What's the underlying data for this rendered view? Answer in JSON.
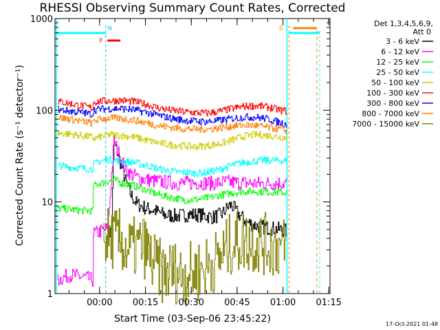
{
  "chart_data": {
    "type": "line",
    "title": "RHESSI Observing Summary Count Rates, Corrected",
    "xlabel": "Start Time (03-Sep-06 23:45:22)",
    "ylabel": "Corrected Count Rate (s⁻¹ detector⁻¹)",
    "x_unit": "minutes after start time",
    "xlim": [
      0,
      90
    ],
    "ylim": [
      1,
      1000
    ],
    "yscale": "log",
    "x_ticks": [
      {
        "x": 14.6,
        "label": "00:00"
      },
      {
        "x": 29.6,
        "label": "00:15"
      },
      {
        "x": 44.6,
        "label": "00:30"
      },
      {
        "x": 59.6,
        "label": "00:45"
      },
      {
        "x": 74.6,
        "label": "01:00"
      },
      {
        "x": 89.6,
        "label": "01:15"
      }
    ],
    "y_ticks": [
      {
        "y": 1,
        "label": "1"
      },
      {
        "y": 10,
        "label": "10"
      },
      {
        "y": 100,
        "label": "100"
      },
      {
        "y": 1000,
        "label": "1000"
      }
    ],
    "legend_header": [
      "Det 1,3,4,5,6,9,",
      "Att 0"
    ],
    "legend_position": "right",
    "grid": false,
    "series": [
      {
        "name": "3 - 6 keV",
        "color": "#000000",
        "points": [
          [
            17.3,
            4.3
          ],
          [
            18.0,
            4.6
          ],
          [
            18.7,
            5.0
          ],
          [
            19.5,
            43
          ],
          [
            20.5,
            36
          ],
          [
            22,
            24
          ],
          [
            23.5,
            16
          ],
          [
            25,
            12
          ],
          [
            27,
            9.5
          ],
          [
            30,
            8.5
          ],
          [
            33,
            8.0
          ],
          [
            36,
            7.2
          ],
          [
            40,
            7.0
          ],
          [
            44,
            7.3
          ],
          [
            48,
            7.2
          ],
          [
            52,
            6.8
          ],
          [
            55,
            7.4
          ],
          [
            57,
            9.0
          ],
          [
            58,
            9.2
          ],
          [
            60,
            7.5
          ],
          [
            63,
            6.0
          ],
          [
            66,
            5.5
          ],
          [
            70,
            5.2
          ],
          [
            74,
            5.0
          ],
          [
            76,
            4.8
          ]
        ]
      },
      {
        "name": "6 - 12 keV",
        "color": "#ff00ff",
        "points": [
          [
            1,
            1.4
          ],
          [
            5,
            1.6
          ],
          [
            10,
            1.5
          ],
          [
            12.5,
            1.4
          ],
          [
            12.6,
            4.5
          ],
          [
            14,
            4.6
          ],
          [
            16,
            4.9
          ],
          [
            17.5,
            5.1
          ],
          [
            19.5,
            47
          ],
          [
            21,
            34
          ],
          [
            23,
            24
          ],
          [
            25,
            20
          ],
          [
            28,
            18
          ],
          [
            32,
            17
          ],
          [
            36,
            16.5
          ],
          [
            40,
            16
          ],
          [
            44,
            16
          ],
          [
            48,
            16.2
          ],
          [
            52,
            16
          ],
          [
            56,
            16.5
          ],
          [
            60,
            16.2
          ],
          [
            64,
            16
          ],
          [
            68,
            15.8
          ],
          [
            72,
            16
          ],
          [
            76,
            16
          ]
        ]
      },
      {
        "name": "12 - 25 keV",
        "color": "#00ff00",
        "points": [
          [
            1,
            8.5
          ],
          [
            5,
            8.3
          ],
          [
            10,
            8.0
          ],
          [
            12.5,
            8.0
          ],
          [
            12.6,
            15
          ],
          [
            15,
            16
          ],
          [
            17,
            16.5
          ],
          [
            19.5,
            17.5
          ],
          [
            22,
            16
          ],
          [
            26,
            15
          ],
          [
            30,
            13.5
          ],
          [
            34,
            12
          ],
          [
            38,
            11.2
          ],
          [
            42,
            10.5
          ],
          [
            46,
            10.6
          ],
          [
            50,
            11
          ],
          [
            54,
            11.8
          ],
          [
            58,
            12.5
          ],
          [
            62,
            13
          ],
          [
            66,
            13
          ],
          [
            70,
            12.8
          ],
          [
            74,
            12.7
          ],
          [
            76,
            12.6
          ]
        ]
      },
      {
        "name": "25 - 50 keV",
        "color": "#00ffff",
        "points": [
          [
            1,
            25
          ],
          [
            5,
            24
          ],
          [
            10,
            23
          ],
          [
            12.5,
            23
          ],
          [
            12.6,
            25.5
          ],
          [
            15,
            28
          ],
          [
            18,
            29
          ],
          [
            20,
            28.5
          ],
          [
            22,
            27.5
          ],
          [
            26,
            27
          ],
          [
            30,
            25
          ],
          [
            34,
            23
          ],
          [
            38,
            21.5
          ],
          [
            42,
            21
          ],
          [
            46,
            20.5
          ],
          [
            50,
            21
          ],
          [
            54,
            22.5
          ],
          [
            58,
            25
          ],
          [
            62,
            27
          ],
          [
            66,
            28
          ],
          [
            70,
            28.5
          ],
          [
            74,
            28
          ],
          [
            76,
            28
          ]
        ]
      },
      {
        "name": "50 - 100 keV",
        "color": "#cccc00",
        "points": [
          [
            1,
            56
          ],
          [
            5,
            55
          ],
          [
            10,
            52
          ],
          [
            12.5,
            51
          ],
          [
            12.6,
            49
          ],
          [
            15,
            51
          ],
          [
            18,
            54
          ],
          [
            22,
            53
          ],
          [
            26,
            51
          ],
          [
            30,
            47
          ],
          [
            34,
            44
          ],
          [
            38,
            42
          ],
          [
            42,
            41
          ],
          [
            46,
            40
          ],
          [
            50,
            41
          ],
          [
            54,
            43
          ],
          [
            58,
            47
          ],
          [
            62,
            52
          ],
          [
            66,
            54
          ],
          [
            70,
            53
          ],
          [
            74,
            51
          ],
          [
            76,
            50
          ]
        ]
      },
      {
        "name": "100 - 300 keV",
        "color": "#ff0000",
        "points": [
          [
            1,
            125
          ],
          [
            5,
            118
          ],
          [
            10,
            110
          ],
          [
            12.5,
            105
          ],
          [
            12.6,
            123
          ],
          [
            15,
            125
          ],
          [
            18,
            127
          ],
          [
            22,
            128
          ],
          [
            26,
            124
          ],
          [
            30,
            116
          ],
          [
            34,
            106
          ],
          [
            38,
            100
          ],
          [
            42,
            96
          ],
          [
            46,
            94
          ],
          [
            50,
            93
          ],
          [
            54,
            97
          ],
          [
            58,
            104
          ],
          [
            62,
            110
          ],
          [
            66,
            112
          ],
          [
            70,
            108
          ],
          [
            74,
            100
          ],
          [
            76,
            98
          ]
        ]
      },
      {
        "name": "300 - 800 keV",
        "color": "#0000ff",
        "points": [
          [
            1,
            102
          ],
          [
            5,
            98
          ],
          [
            10,
            93
          ],
          [
            12.5,
            90
          ],
          [
            12.6,
            100
          ],
          [
            15,
            103
          ],
          [
            18,
            104
          ],
          [
            22,
            104
          ],
          [
            26,
            101
          ],
          [
            30,
            95
          ],
          [
            34,
            88
          ],
          [
            38,
            82
          ],
          [
            42,
            78
          ],
          [
            46,
            76
          ],
          [
            50,
            75
          ],
          [
            54,
            77
          ],
          [
            58,
            81
          ],
          [
            62,
            84
          ],
          [
            66,
            84
          ],
          [
            70,
            80
          ],
          [
            74,
            73
          ],
          [
            76,
            70
          ]
        ]
      },
      {
        "name": "800 - 7000 keV",
        "color": "#ff8000",
        "points": [
          [
            1,
            83
          ],
          [
            5,
            80
          ],
          [
            10,
            75
          ],
          [
            12.5,
            72
          ],
          [
            12.6,
            76
          ],
          [
            15,
            80
          ],
          [
            18,
            82
          ],
          [
            22,
            81
          ],
          [
            26,
            78
          ],
          [
            30,
            73
          ],
          [
            34,
            68
          ],
          [
            38,
            65
          ],
          [
            42,
            63
          ],
          [
            46,
            62
          ],
          [
            50,
            62
          ],
          [
            54,
            64
          ],
          [
            58,
            67
          ],
          [
            62,
            69
          ],
          [
            66,
            68
          ],
          [
            70,
            65
          ],
          [
            74,
            62
          ],
          [
            76,
            60
          ]
        ]
      },
      {
        "name": "7000 - 15000 keV",
        "color": "#808000",
        "points": [
          [
            16,
            4.0
          ],
          [
            18,
            4.0
          ],
          [
            20,
            3.9
          ],
          [
            22,
            3.8
          ],
          [
            23,
            3.0
          ],
          [
            26,
            3.1
          ],
          [
            29,
            3.4
          ],
          [
            30,
            3.0
          ],
          [
            32,
            2.2
          ],
          [
            34,
            1.9
          ],
          [
            36,
            1.6
          ],
          [
            38,
            1.8
          ],
          [
            42,
            1.6
          ],
          [
            45,
            1.7
          ],
          [
            48,
            1.8
          ],
          [
            50,
            2.0
          ],
          [
            54,
            2.4
          ],
          [
            56,
            3.0
          ],
          [
            58,
            3.5
          ],
          [
            62,
            3.8
          ],
          [
            66,
            3.6
          ],
          [
            70,
            3.4
          ],
          [
            74,
            3.2
          ],
          [
            76,
            3.1
          ]
        ]
      }
    ],
    "annotations": [
      {
        "label": "N",
        "x": 16.6,
        "color": "#00cccc",
        "line_color": "#00cccc"
      },
      {
        "label": "F",
        "x": 16.0,
        "color": "#ff0000"
      },
      {
        "label": "S",
        "x": 76.6,
        "color": "#ff8000",
        "line_color": "#ff8000"
      }
    ],
    "footer_date": "17-Oct-2021 01:48"
  }
}
